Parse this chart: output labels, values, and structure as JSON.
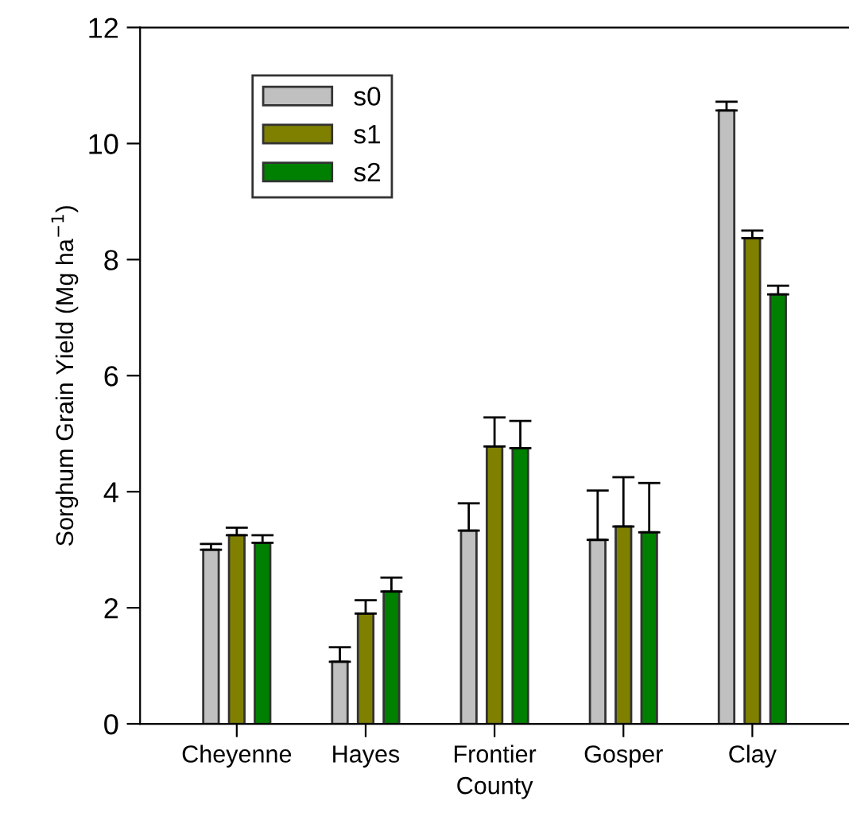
{
  "chart_data": {
    "type": "bar",
    "xlabel": "County",
    "ylabel": "Sorghum Grain Yield (Mg ha$^{−1}$)",
    "categories": [
      "Cheyenne",
      "Hayes",
      "Frontier",
      "Gosper",
      "Clay"
    ],
    "series": [
      {
        "name": "s0",
        "color": "#c0c0c0",
        "values": [
          3.0,
          1.07,
          3.33,
          3.17,
          10.57
        ],
        "errors": [
          [
            3.0,
            3.1
          ],
          [
            1.07,
            1.32
          ],
          [
            3.33,
            3.8
          ],
          [
            3.17,
            4.02
          ],
          [
            10.57,
            10.72
          ]
        ]
      },
      {
        "name": "s1",
        "color": "#808000",
        "values": [
          3.25,
          1.9,
          4.78,
          3.4,
          8.37
        ],
        "errors": [
          [
            3.25,
            3.38
          ],
          [
            1.9,
            2.13
          ],
          [
            4.78,
            5.28
          ],
          [
            3.4,
            4.25
          ],
          [
            8.37,
            8.5
          ]
        ]
      },
      {
        "name": "s2",
        "color": "#008000",
        "values": [
          3.12,
          2.28,
          4.75,
          3.3,
          7.4
        ],
        "errors": [
          [
            3.12,
            3.25
          ],
          [
            2.28,
            2.52
          ],
          [
            4.75,
            5.22
          ],
          [
            3.3,
            4.15
          ],
          [
            7.4,
            7.55
          ]
        ]
      }
    ],
    "ylim": [
      0,
      12
    ],
    "yticks": [
      0,
      2,
      4,
      6,
      8,
      10,
      12
    ],
    "grid": false,
    "legend": "top left"
  }
}
